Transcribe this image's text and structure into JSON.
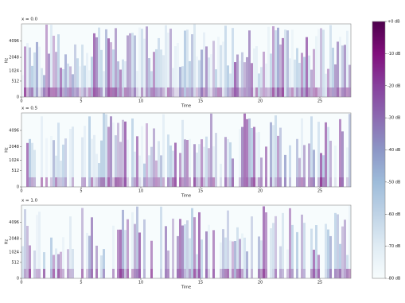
{
  "chart_data": [
    {
      "type": "spectrogram",
      "title": "x = 0.0",
      "xlabel": "Time",
      "ylabel": "Hz",
      "xlim": [
        0,
        27.6
      ],
      "xticks": [
        0,
        5,
        10,
        15,
        20,
        25
      ],
      "ylim": [
        0,
        8000
      ],
      "yticks": [
        0,
        512,
        1024,
        2048,
        4096
      ],
      "yscale": "mel"
    },
    {
      "type": "spectrogram",
      "title": "x = 0.5",
      "xlabel": "Time",
      "ylabel": "Hz",
      "xlim": [
        0,
        27.6
      ],
      "xticks": [
        0,
        5,
        10,
        15,
        20,
        25
      ],
      "ylim": [
        0,
        8000
      ],
      "yticks": [
        0,
        512,
        1024,
        2048,
        4096
      ],
      "yscale": "mel"
    },
    {
      "type": "spectrogram",
      "title": "x = 1.0",
      "xlabel": "Time",
      "ylabel": "Hz",
      "xlim": [
        0,
        27.6
      ],
      "xticks": [
        0,
        5,
        10,
        15,
        20,
        25
      ],
      "ylim": [
        0,
        8000
      ],
      "yticks": [
        0,
        512,
        1024,
        2048,
        4096
      ],
      "yscale": "mel"
    },
    {
      "type": "colorbar",
      "clim": [
        -80,
        0
      ],
      "ticks": [
        {
          "value": 0,
          "label": "+0 dB"
        },
        {
          "value": -10,
          "label": "-10 dB"
        },
        {
          "value": -20,
          "label": "-20 dB"
        },
        {
          "value": -30,
          "label": "-30 dB"
        },
        {
          "value": -40,
          "label": "-40 dB"
        },
        {
          "value": -50,
          "label": "-50 dB"
        },
        {
          "value": -60,
          "label": "-60 dB"
        },
        {
          "value": -70,
          "label": "-70 dB"
        },
        {
          "value": -80,
          "label": "-80 dB"
        }
      ],
      "colors": [
        "#f7fcfd",
        "#e0ecf4",
        "#bfd3e6",
        "#9ebcda",
        "#8c96c6",
        "#8c6bb1",
        "#88419d",
        "#810f7c",
        "#4d004b"
      ]
    }
  ]
}
